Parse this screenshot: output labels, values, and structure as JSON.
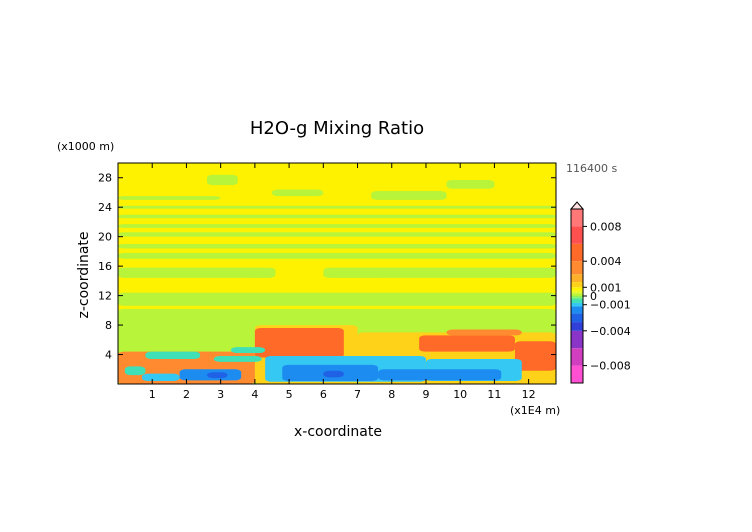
{
  "chart_data": {
    "type": "heatmap",
    "title": "H2O-g Mixing Ratio",
    "xlabel": "x-coordinate",
    "ylabel": "z-coordinate",
    "x_unit": "(x1E4 m)",
    "y_unit": "(x1000 m)",
    "time_label": "116400 s",
    "xlim": [
      0,
      12.8
    ],
    "ylim": [
      0,
      30
    ],
    "x_ticks": [
      1,
      2,
      3,
      4,
      5,
      6,
      7,
      8,
      9,
      10,
      11,
      12
    ],
    "y_ticks": [
      4,
      8,
      12,
      16,
      20,
      24,
      28
    ],
    "colorbar": {
      "range": [
        -0.01,
        0.01
      ],
      "tick_values": [
        0.008,
        0.004,
        0.001,
        0,
        -0.001,
        -0.004,
        -0.008
      ],
      "tick_labels": [
        "0.008",
        "0.004",
        "0.001",
        "0",
        "−0.001",
        "−0.004",
        "−0.008"
      ],
      "palette": [
        {
          "v": -0.01,
          "color": "#ff4fd2"
        },
        {
          "v": -0.008,
          "color": "#d13fc0"
        },
        {
          "v": -0.006,
          "color": "#8a35c8"
        },
        {
          "v": -0.004,
          "color": "#2f3fd8"
        },
        {
          "v": -0.003,
          "color": "#1f62e6"
        },
        {
          "v": -0.002,
          "color": "#1d8cf0"
        },
        {
          "v": -0.0012,
          "color": "#35c8f2"
        },
        {
          "v": -0.0008,
          "color": "#3fe0b8"
        },
        {
          "v": -0.0004,
          "color": "#66ec88"
        },
        {
          "v": -0.0002,
          "color": "#8cf25a"
        },
        {
          "v": 0,
          "color": "#b8f43a"
        },
        {
          "v": 0.0003,
          "color": "#e8f82a"
        },
        {
          "v": 0.0006,
          "color": "#fff200"
        },
        {
          "v": 0.001,
          "color": "#ffd21a"
        },
        {
          "v": 0.0016,
          "color": "#ffb02a"
        },
        {
          "v": 0.0025,
          "color": "#ff8a30"
        },
        {
          "v": 0.004,
          "color": "#ff6a28"
        },
        {
          "v": 0.006,
          "color": "#ff5050"
        },
        {
          "v": 0.008,
          "color": "#ff7777"
        },
        {
          "v": 0.01,
          "color": "#ffb3b3"
        }
      ]
    },
    "field": {
      "background": 0.0006,
      "regions": [
        {
          "z": [
            0,
            0.6
          ],
          "x": [
            0,
            12.8
          ],
          "v": 0.0
        },
        {
          "z": [
            10.6,
            12.4
          ],
          "x": [
            0,
            12.8
          ],
          "v": 0.0
        },
        {
          "z": [
            14.4,
            15.8
          ],
          "x": [
            0,
            4.6
          ],
          "v": 0.0
        },
        {
          "z": [
            14.4,
            15.8
          ],
          "x": [
            6.0,
            12.8
          ],
          "v": 0.0
        },
        {
          "z": [
            17.0,
            17.8
          ],
          "x": [
            0,
            12.8
          ],
          "v": 0.0
        },
        {
          "z": [
            18.4,
            19.0
          ],
          "x": [
            0,
            12.8
          ],
          "v": 0.0
        },
        {
          "z": [
            20.0,
            20.6
          ],
          "x": [
            0,
            12.8
          ],
          "v": 0.0
        },
        {
          "z": [
            21.2,
            21.7
          ],
          "x": [
            0,
            12.8
          ],
          "v": 0.0
        },
        {
          "z": [
            22.5,
            23.0
          ],
          "x": [
            0,
            12.8
          ],
          "v": 0.0
        },
        {
          "z": [
            23.8,
            24.2
          ],
          "x": [
            0,
            12.8
          ],
          "v": 0.0
        },
        {
          "z": [
            25.0,
            25.5
          ],
          "x": [
            0,
            3.0
          ],
          "v": 0.0
        },
        {
          "z": [
            25.5,
            26.4
          ],
          "x": [
            4.5,
            6.0
          ],
          "v": 0.0
        },
        {
          "z": [
            25.0,
            26.2
          ],
          "x": [
            7.4,
            9.6
          ],
          "v": 0.0
        },
        {
          "z": [
            26.5,
            27.7
          ],
          "x": [
            9.6,
            11.0
          ],
          "v": 0.0
        },
        {
          "z": [
            27.0,
            28.4
          ],
          "x": [
            2.6,
            3.5
          ],
          "v": 0.0
        },
        {
          "z": [
            0,
            10.2
          ],
          "x": [
            0,
            12.8
          ],
          "v": 0.0
        },
        {
          "z": [
            0,
            8.0
          ],
          "x": [
            4.0,
            7.0
          ],
          "v": 0.001
        },
        {
          "z": [
            0,
            7.0
          ],
          "x": [
            7.0,
            12.8
          ],
          "v": 0.001
        },
        {
          "z": [
            0,
            4.4
          ],
          "x": [
            0,
            4.0
          ],
          "v": 0.0025
        },
        {
          "z": [
            3.6,
            7.6
          ],
          "x": [
            4.0,
            6.6
          ],
          "v": 0.004
        },
        {
          "z": [
            4.4,
            6.6
          ],
          "x": [
            8.8,
            11.6
          ],
          "v": 0.004
        },
        {
          "z": [
            1.8,
            5.8
          ],
          "x": [
            11.6,
            12.8
          ],
          "v": 0.004
        },
        {
          "z": [
            6.6,
            7.4
          ],
          "x": [
            9.6,
            11.8
          ],
          "v": 0.0025
        },
        {
          "z": [
            3.0,
            3.8
          ],
          "x": [
            2.8,
            4.2
          ],
          "v": -0.0008
        },
        {
          "z": [
            3.4,
            4.4
          ],
          "x": [
            0.8,
            2.4
          ],
          "v": -0.0008
        },
        {
          "z": [
            4.2,
            5.0
          ],
          "x": [
            3.3,
            4.3
          ],
          "v": -0.0008
        },
        {
          "z": [
            1.2,
            2.4
          ],
          "x": [
            0.2,
            0.8
          ],
          "v": -0.0008
        },
        {
          "z": [
            0.4,
            1.4
          ],
          "x": [
            0.7,
            1.8
          ],
          "v": -0.0012
        },
        {
          "z": [
            0.3,
            3.8
          ],
          "x": [
            4.3,
            9.0
          ],
          "v": -0.0012
        },
        {
          "z": [
            0.4,
            3.4
          ],
          "x": [
            9.0,
            11.8
          ],
          "v": -0.0012
        },
        {
          "z": [
            0.5,
            2.0
          ],
          "x": [
            1.8,
            3.6
          ],
          "v": -0.002
        },
        {
          "z": [
            0.4,
            2.6
          ],
          "x": [
            4.8,
            7.6
          ],
          "v": -0.002
        },
        {
          "z": [
            0.5,
            2.0
          ],
          "x": [
            7.6,
            11.2
          ],
          "v": -0.002
        },
        {
          "z": [
            0.8,
            1.6
          ],
          "x": [
            2.6,
            3.2
          ],
          "v": -0.003
        },
        {
          "z": [
            0.9,
            1.8
          ],
          "x": [
            6.0,
            6.6
          ],
          "v": -0.003
        }
      ]
    }
  }
}
